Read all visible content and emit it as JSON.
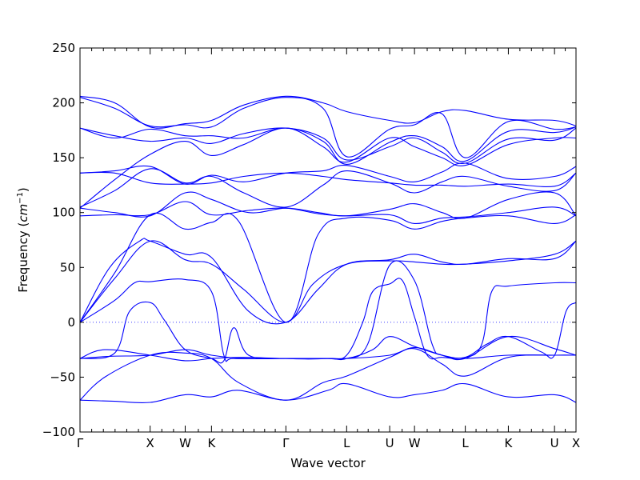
{
  "chart_data": {
    "type": "line",
    "title": "",
    "xlabel": "Wave vector",
    "ylabel": "Frequency (cm⁻¹)",
    "ylabel_text": "Frequency (",
    "ylabel_unit": "cm",
    "ylabel_exp": "−1",
    "ylabel_close": ")",
    "ylim": [
      -100,
      250
    ],
    "yticks": [
      -100,
      -50,
      0,
      50,
      100,
      150,
      200,
      250
    ],
    "xlim": [
      0,
      10
    ],
    "high_symmetry_points": [
      {
        "label": "Γ",
        "x": 0.0
      },
      {
        "label": "X",
        "x": 1.414
      },
      {
        "label": "W",
        "x": 2.121
      },
      {
        "label": "K",
        "x": 2.651
      },
      {
        "label": "Γ",
        "x": 4.151
      },
      {
        "label": "L",
        "x": 5.376
      },
      {
        "label": "U",
        "x": 6.244
      },
      {
        "label": "W",
        "x": 6.744
      },
      {
        "label": "L",
        "x": 7.768
      },
      {
        "label": "K",
        "x": 8.636
      },
      {
        "label": "U",
        "x": 9.567
      },
      {
        "label": "X",
        "x": 10.0
      }
    ],
    "zero_line": true,
    "grid": false,
    "line_color": "#0000ff",
    "branches": [
      {
        "x": [
          0,
          0.7,
          1.414,
          2.121,
          2.651,
          3.2,
          4.151,
          5.0,
          5.376,
          6.244,
          6.744,
          7.3,
          7.768,
          8.636,
          9.567,
          10
        ],
        "y": [
          -71,
          -72,
          -73,
          -66,
          -68,
          -62,
          -71,
          -62,
          -56,
          -68,
          -66,
          -62,
          -56,
          -68,
          -66,
          -73
        ]
      },
      {
        "x": [
          0,
          0.5,
          1.414,
          2.121,
          2.651,
          3.2,
          4.151,
          4.9,
          5.376,
          6.244,
          6.744,
          7.3,
          7.768,
          8.636,
          9.567,
          10
        ],
        "y": [
          -71,
          -50,
          -30,
          -28,
          -33,
          -55,
          -71,
          -55,
          -49,
          -32,
          -24,
          -38,
          -49,
          -32,
          -30,
          -30
        ]
      },
      {
        "x": [
          0,
          0.6,
          1.414,
          2.121,
          2.651,
          3.3,
          4.151,
          4.9,
          5.376,
          5.9,
          6.244,
          6.744,
          7.3,
          7.768,
          8.636,
          9.567,
          10
        ],
        "y": [
          -33,
          -31,
          -30,
          -25,
          -30,
          -33,
          -33,
          -33,
          -33,
          -25,
          -13,
          -22,
          -30,
          -33,
          -13,
          -24,
          -30
        ]
      },
      {
        "x": [
          0,
          0.5,
          1.414,
          2.121,
          2.651,
          3.3,
          4.151,
          5.0,
          5.376,
          6.244,
          6.744,
          7.3,
          7.768,
          8.636,
          9.567,
          10
        ],
        "y": [
          -33,
          -25,
          -30,
          -35,
          -33,
          -32,
          -33,
          -33,
          -33,
          -30,
          -23,
          -30,
          -33,
          -30,
          -30,
          -30
        ]
      },
      {
        "x": [
          0,
          0.7,
          1.0,
          1.414,
          1.7,
          2.121,
          2.651,
          2.9,
          3.1,
          3.4,
          4.151,
          5.0,
          5.376,
          5.7,
          5.9,
          6.244,
          6.5,
          6.744,
          7.0,
          7.3,
          7.768,
          8.2,
          8.636,
          9.3,
          9.567,
          9.8,
          10
        ],
        "y": [
          -33,
          -28,
          10,
          18,
          2,
          -25,
          -33,
          -35,
          -5,
          -30,
          -33,
          -33,
          -30,
          0,
          28,
          35,
          38,
          5,
          -30,
          -32,
          -32,
          -20,
          -13,
          -27,
          -30,
          10,
          18
        ]
      },
      {
        "x": [
          0,
          0.7,
          1.1,
          1.414,
          2.121,
          2.651,
          2.9,
          3.1,
          4.151,
          5.0,
          5.376,
          5.8,
          6.244,
          6.744,
          7.1,
          7.3,
          7.768,
          8.1,
          8.3,
          8.636,
          9.567,
          10
        ],
        "y": [
          0,
          20,
          36,
          37,
          39,
          28,
          -30,
          -33,
          -33,
          -33,
          -33,
          -20,
          52,
          38,
          -20,
          -30,
          -32,
          -20,
          28,
          33,
          36,
          36
        ]
      },
      {
        "x": [
          0,
          0.6,
          1.2,
          1.414,
          2.121,
          2.651,
          3.4,
          4.151,
          4.8,
          5.376,
          6.244,
          6.744,
          7.3,
          7.768,
          8.636,
          9.567,
          10
        ],
        "y": [
          0,
          50,
          74,
          74,
          62,
          59,
          10,
          0,
          30,
          53,
          57,
          62,
          55,
          53,
          58,
          58,
          74
        ]
      },
      {
        "x": [
          0,
          0.7,
          1.414,
          2.121,
          2.651,
          3.3,
          4.151,
          4.7,
          5.376,
          6.244,
          6.744,
          7.3,
          7.768,
          8.636,
          9.567,
          10
        ],
        "y": [
          0,
          40,
          74,
          57,
          53,
          30,
          0,
          35,
          53,
          56,
          55,
          53,
          53,
          56,
          62,
          74
        ]
      },
      {
        "x": [
          0,
          0.7,
          1.414,
          2.121,
          2.651,
          3.2,
          4.151,
          4.8,
          5.376,
          6.244,
          6.744,
          7.3,
          7.768,
          8.636,
          9.567,
          10
        ],
        "y": [
          0,
          45,
          98,
          85,
          91,
          92,
          0,
          80,
          95,
          93,
          85,
          92,
          95,
          97,
          90,
          98
        ]
      },
      {
        "x": [
          0,
          0.7,
          1.414,
          2.121,
          2.651,
          3.4,
          4.151,
          4.8,
          5.376,
          6.244,
          6.744,
          7.3,
          7.768,
          8.636,
          9.567,
          10
        ],
        "y": [
          97,
          98,
          98,
          110,
          98,
          102,
          104,
          99,
          97,
          98,
          90,
          95,
          96,
          100,
          105,
          97
        ]
      },
      {
        "x": [
          0,
          0.7,
          1.414,
          2.121,
          2.651,
          3.4,
          4.151,
          4.8,
          5.376,
          6.244,
          6.744,
          7.3,
          7.768,
          8.636,
          9.567,
          10
        ],
        "y": [
          104,
          100,
          97,
          118,
          112,
          100,
          104,
          100,
          97,
          103,
          108,
          100,
          95,
          112,
          118,
          97
        ]
      },
      {
        "x": [
          0,
          0.7,
          1.414,
          2.121,
          2.651,
          3.3,
          4.151,
          4.9,
          5.376,
          6.244,
          6.744,
          7.3,
          7.768,
          8.636,
          9.567,
          10
        ],
        "y": [
          136,
          136,
          127,
          126,
          127,
          133,
          136,
          133,
          130,
          127,
          125,
          125,
          124,
          126,
          124,
          136
        ]
      },
      {
        "x": [
          0,
          0.7,
          1.414,
          2.121,
          2.651,
          3.3,
          4.151,
          4.9,
          5.376,
          6.244,
          6.744,
          7.3,
          7.768,
          8.636,
          9.567,
          10
        ],
        "y": [
          105,
          120,
          140,
          127,
          133,
          118,
          105,
          125,
          138,
          127,
          118,
          128,
          133,
          124,
          120,
          136
        ]
      },
      {
        "x": [
          0,
          0.7,
          1.414,
          2.121,
          2.651,
          3.3,
          4.151,
          4.9,
          5.376,
          6.244,
          6.744,
          7.3,
          7.768,
          8.636,
          9.567,
          10
        ],
        "y": [
          136,
          138,
          142,
          126,
          134,
          128,
          136,
          138,
          143,
          133,
          128,
          137,
          145,
          131,
          133,
          142
        ]
      },
      {
        "x": [
          0,
          0.7,
          1.414,
          2.121,
          2.651,
          3.3,
          4.151,
          4.9,
          5.376,
          6.244,
          6.744,
          7.3,
          7.768,
          8.636,
          9.567,
          10
        ],
        "y": [
          104,
          130,
          153,
          165,
          152,
          162,
          177,
          160,
          146,
          168,
          160,
          150,
          143,
          162,
          168,
          168
        ]
      },
      {
        "x": [
          0,
          0.7,
          1.414,
          2.121,
          2.651,
          3.3,
          4.151,
          4.9,
          5.376,
          6.244,
          6.744,
          7.3,
          7.768,
          8.636,
          9.567,
          10
        ],
        "y": [
          177,
          170,
          165,
          168,
          163,
          172,
          177,
          168,
          148,
          160,
          168,
          155,
          145,
          167,
          166,
          177
        ]
      },
      {
        "x": [
          0,
          0.7,
          1.414,
          2.121,
          2.651,
          3.3,
          4.151,
          4.9,
          5.376,
          6.244,
          6.744,
          7.3,
          7.768,
          8.636,
          9.567,
          10
        ],
        "y": [
          177,
          168,
          176,
          170,
          170,
          168,
          177,
          165,
          144,
          164,
          170,
          160,
          147,
          174,
          173,
          178
        ]
      },
      {
        "x": [
          0,
          0.7,
          1.414,
          2.121,
          2.651,
          3.3,
          4.151,
          4.9,
          5.376,
          6.244,
          6.744,
          7.3,
          7.768,
          8.636,
          9.567,
          10
        ],
        "y": [
          205,
          195,
          179,
          180,
          178,
          195,
          205,
          195,
          151,
          176,
          180,
          190,
          150,
          183,
          176,
          178
        ]
      },
      {
        "x": [
          0,
          0.7,
          1.414,
          2.121,
          2.651,
          3.3,
          4.151,
          4.9,
          5.376,
          6.244,
          6.744,
          7.3,
          7.768,
          8.636,
          9.567,
          10
        ],
        "y": [
          206,
          200,
          178,
          181,
          184,
          198,
          206,
          200,
          192,
          184,
          182,
          192,
          193,
          185,
          184,
          179
        ]
      }
    ]
  }
}
